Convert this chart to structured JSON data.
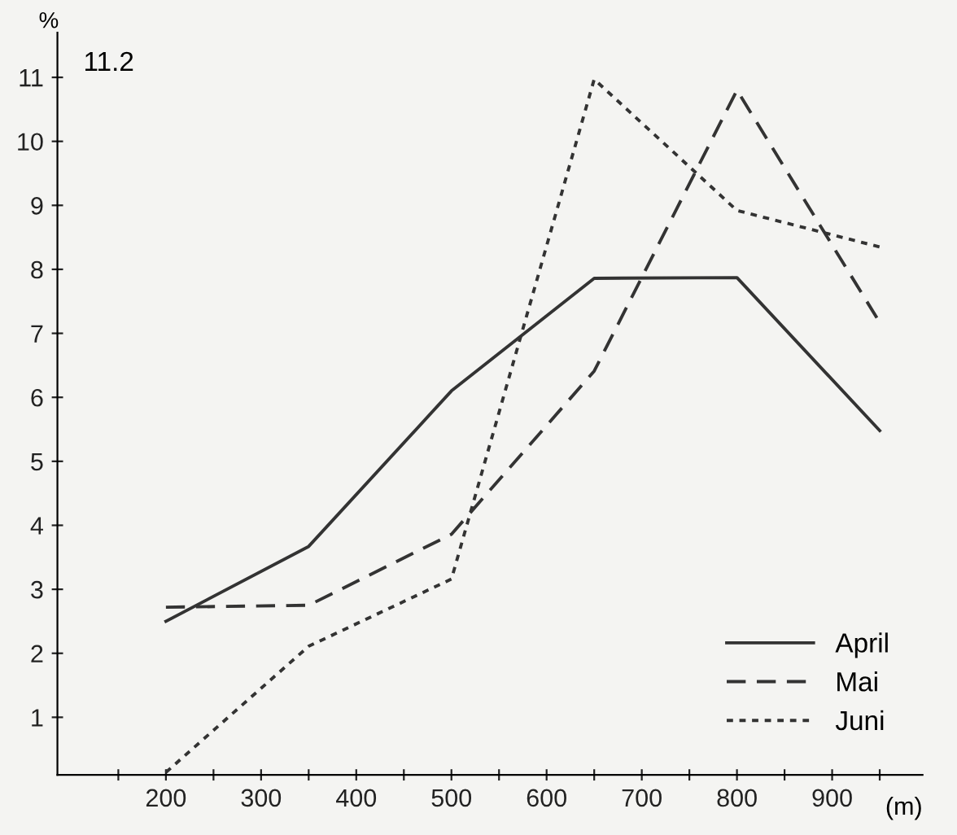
{
  "chart_data": {
    "type": "line",
    "xlabel": "(m)",
    "ylabel": "%",
    "annotations": [
      "11.2"
    ],
    "x": [
      200,
      350,
      500,
      650,
      800,
      950
    ],
    "series": [
      {
        "name": "April",
        "color": "#333333",
        "line_style": "solid",
        "values": [
          2.5,
          3.67,
          6.1,
          7.86,
          7.87,
          5.48
        ]
      },
      {
        "name": "Mai",
        "color": "#333333",
        "line_style": "dashed",
        "values": [
          2.72,
          2.75,
          3.86,
          6.41,
          10.8,
          7.17
        ]
      },
      {
        "name": "Juni",
        "color": "#333333",
        "line_style": "dotted",
        "values": [
          0.14,
          2.11,
          3.16,
          10.97,
          8.92,
          8.35
        ]
      }
    ],
    "xlim": [
      86,
      995
    ],
    "ylim": [
      0.1,
      11.7
    ],
    "xticks": [
      {
        "value": 150,
        "label": null
      },
      200,
      {
        "value": 250,
        "label": null
      },
      300,
      {
        "value": 350,
        "label": null
      },
      400,
      {
        "value": 450,
        "label": null
      },
      500,
      {
        "value": 550,
        "label": null
      },
      600,
      {
        "value": 650,
        "label": null
      },
      700,
      {
        "value": 750,
        "label": null
      },
      800,
      {
        "value": 850,
        "label": null
      },
      900,
      {
        "value": 950,
        "label": null
      }
    ],
    "yticks": [
      1,
      2,
      3,
      4,
      5,
      6,
      7,
      8,
      9,
      10,
      11
    ],
    "grid": false,
    "legend": "bottom right",
    "marker": "none"
  }
}
